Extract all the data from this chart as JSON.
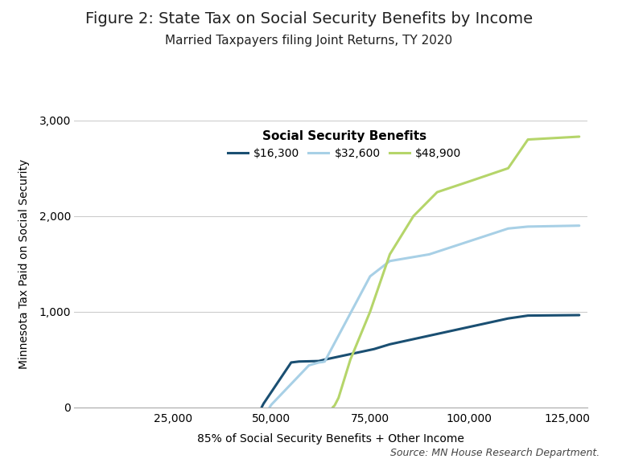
{
  "title": "Figure 2: State Tax on Social Security Benefits by Income",
  "subtitle": "Married Taxpayers filing Joint Returns, TY 2020",
  "xlabel": "85% of Social Security Benefits + Other Income",
  "ylabel": "Minnesota Tax Paid on Social Security",
  "source": "Source: MN House Research Department.",
  "legend_title": "Social Security Benefits",
  "legend_labels": [
    "$16,300",
    "$32,600",
    "$48,900"
  ],
  "line_colors": [
    "#1a4f72",
    "#a8d0e6",
    "#b5d56a"
  ],
  "xlim": [
    0,
    130000
  ],
  "ylim": [
    0,
    3000
  ],
  "xticks": [
    25000,
    50000,
    75000,
    100000,
    125000
  ],
  "yticks": [
    0,
    1000,
    2000,
    3000
  ],
  "series": {
    "s16300": {
      "x": [
        47500,
        48000,
        55000,
        57000,
        62000,
        62500,
        63500,
        76000,
        80000,
        110000,
        115000,
        128000
      ],
      "y": [
        0,
        40,
        470,
        480,
        485,
        490,
        500,
        610,
        660,
        930,
        960,
        965
      ]
    },
    "s32600": {
      "x": [
        49500,
        50000,
        59500,
        62000,
        63000,
        63500,
        75000,
        80000,
        90000,
        110000,
        115000,
        128000
      ],
      "y": [
        0,
        30,
        440,
        470,
        475,
        480,
        1370,
        1530,
        1600,
        1870,
        1890,
        1900
      ]
    },
    "s48900": {
      "x": [
        65500,
        66000,
        67000,
        70000,
        75000,
        80000,
        86000,
        92000,
        100000,
        110000,
        115000,
        128000
      ],
      "y": [
        0,
        20,
        100,
        500,
        1000,
        1600,
        2000,
        2250,
        2360,
        2500,
        2800,
        2830
      ]
    }
  },
  "background_color": "#ffffff",
  "grid_color": "#cccccc",
  "title_fontsize": 14,
  "subtitle_fontsize": 11,
  "axis_label_fontsize": 10,
  "tick_fontsize": 10,
  "legend_fontsize": 10,
  "source_fontsize": 9
}
